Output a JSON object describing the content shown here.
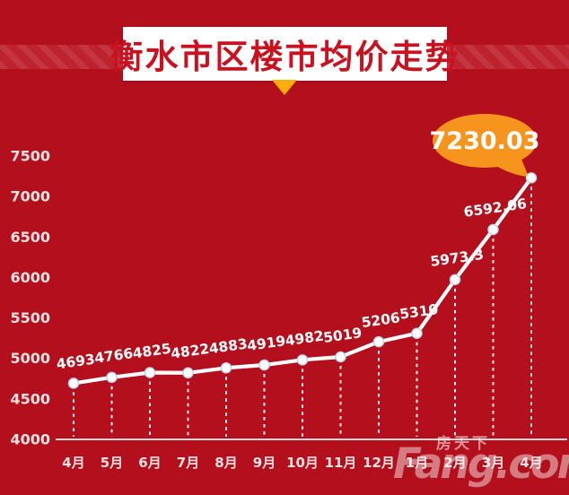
{
  "title": "衡水市区楼市均价走势",
  "watermark": {
    "logo": "Fang.com",
    "cjk": "房天下"
  },
  "colors": {
    "background": "#b30f1c",
    "banner_bg": "#ffffff",
    "title_text": "#c9111f",
    "pointer": "#fbae08",
    "line": "#ffffff",
    "bubble": "#f7941d",
    "bubble_text": "#ffffff",
    "axis_text": "#f8e3e3",
    "value_label_text": "#ffffff"
  },
  "chart_data": {
    "type": "line",
    "title": "衡水市区楼市均价走势",
    "categories": [
      "4月",
      "5月",
      "6月",
      "7月",
      "8月",
      "9月",
      "10月",
      "11月",
      "12月",
      "1月",
      "2月",
      "3月",
      "4月"
    ],
    "values": [
      4693,
      4766,
      4825,
      4822,
      4883,
      4919,
      4982,
      5019,
      5206,
      5310,
      5973.3,
      6592.06,
      7230.03
    ],
    "callout_value": "7230.03",
    "xlabel": "",
    "ylabel": "",
    "ylim": [
      4000,
      7500
    ],
    "ytick_step": 500,
    "yticks": [
      4000,
      4500,
      5000,
      5500,
      6000,
      6500,
      7000,
      7500
    ],
    "grid": false,
    "marker": "circle",
    "legend": null,
    "line_color": "#ffffff",
    "drop_lines": "dashed-white"
  }
}
